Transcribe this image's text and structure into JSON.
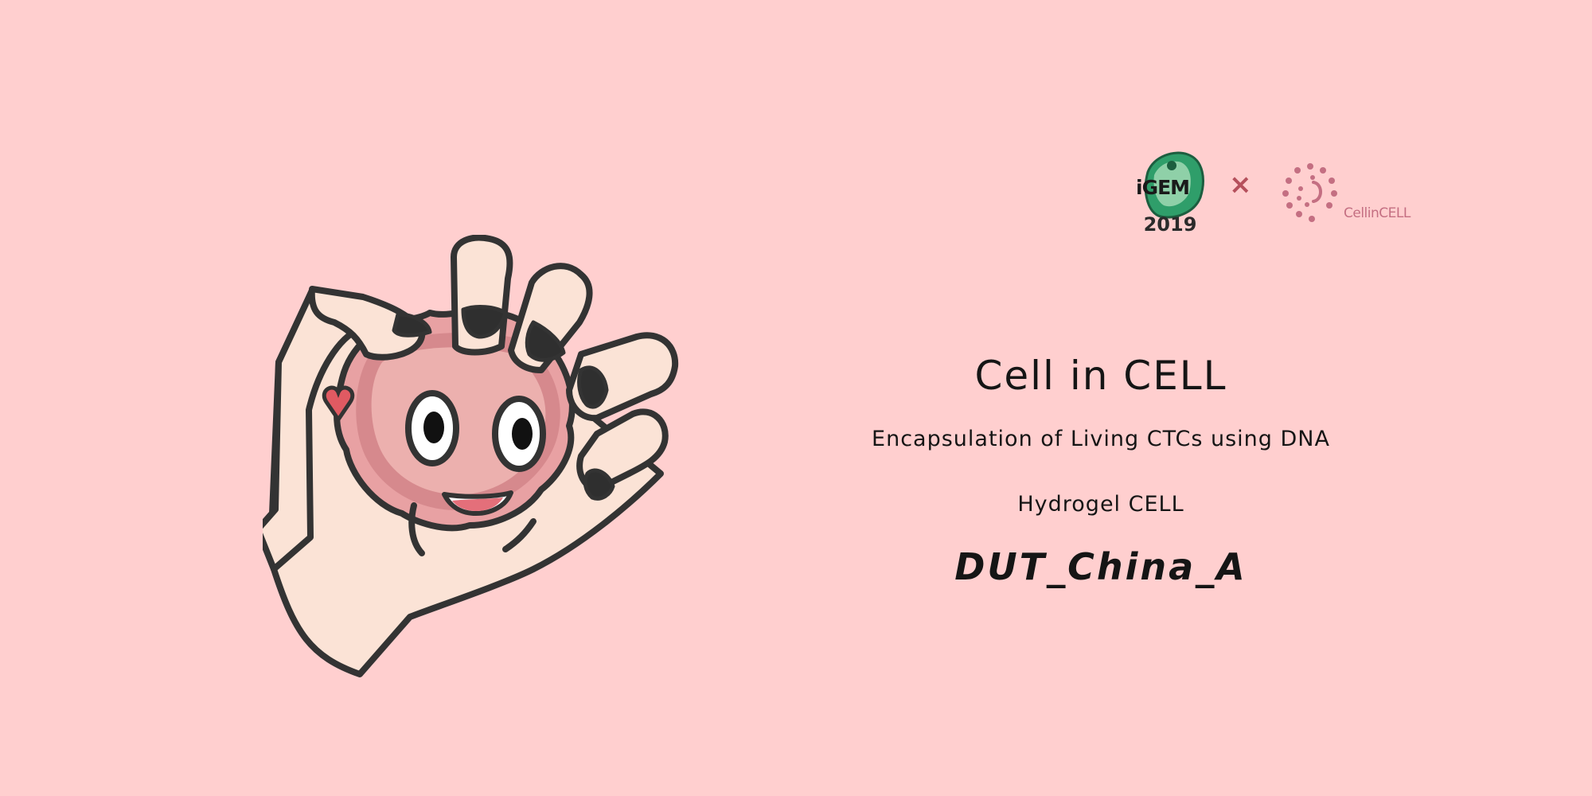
{
  "colors": {
    "background": "#ffcfcf",
    "outline": "#333333",
    "skin": "#fbe3d6",
    "cell": "#e8a1a3",
    "cell_shadow": "#d6898d",
    "nail": "#2f2f2f",
    "igem_green": "#2f9e6a",
    "brand_pink": "#c46f82"
  },
  "logos": {
    "igem_label": "iGEM",
    "igem_year": "2019",
    "separator": "×",
    "partner_name": "CellinCELL"
  },
  "title": {
    "heading": "Cell in CELL",
    "subtitle_line1": "Encapsulation of Living CTCs using DNA",
    "subtitle_line2": "Hydrogel CELL",
    "team": "DUT_China_A"
  },
  "icons": {
    "hand": "hand-holding-cell-icon",
    "cell_face": "smiling-cell-icon",
    "heart": "heart-icon",
    "igem_logo": "igem-logo-icon",
    "partner_logo": "cellincell-logo-icon"
  }
}
